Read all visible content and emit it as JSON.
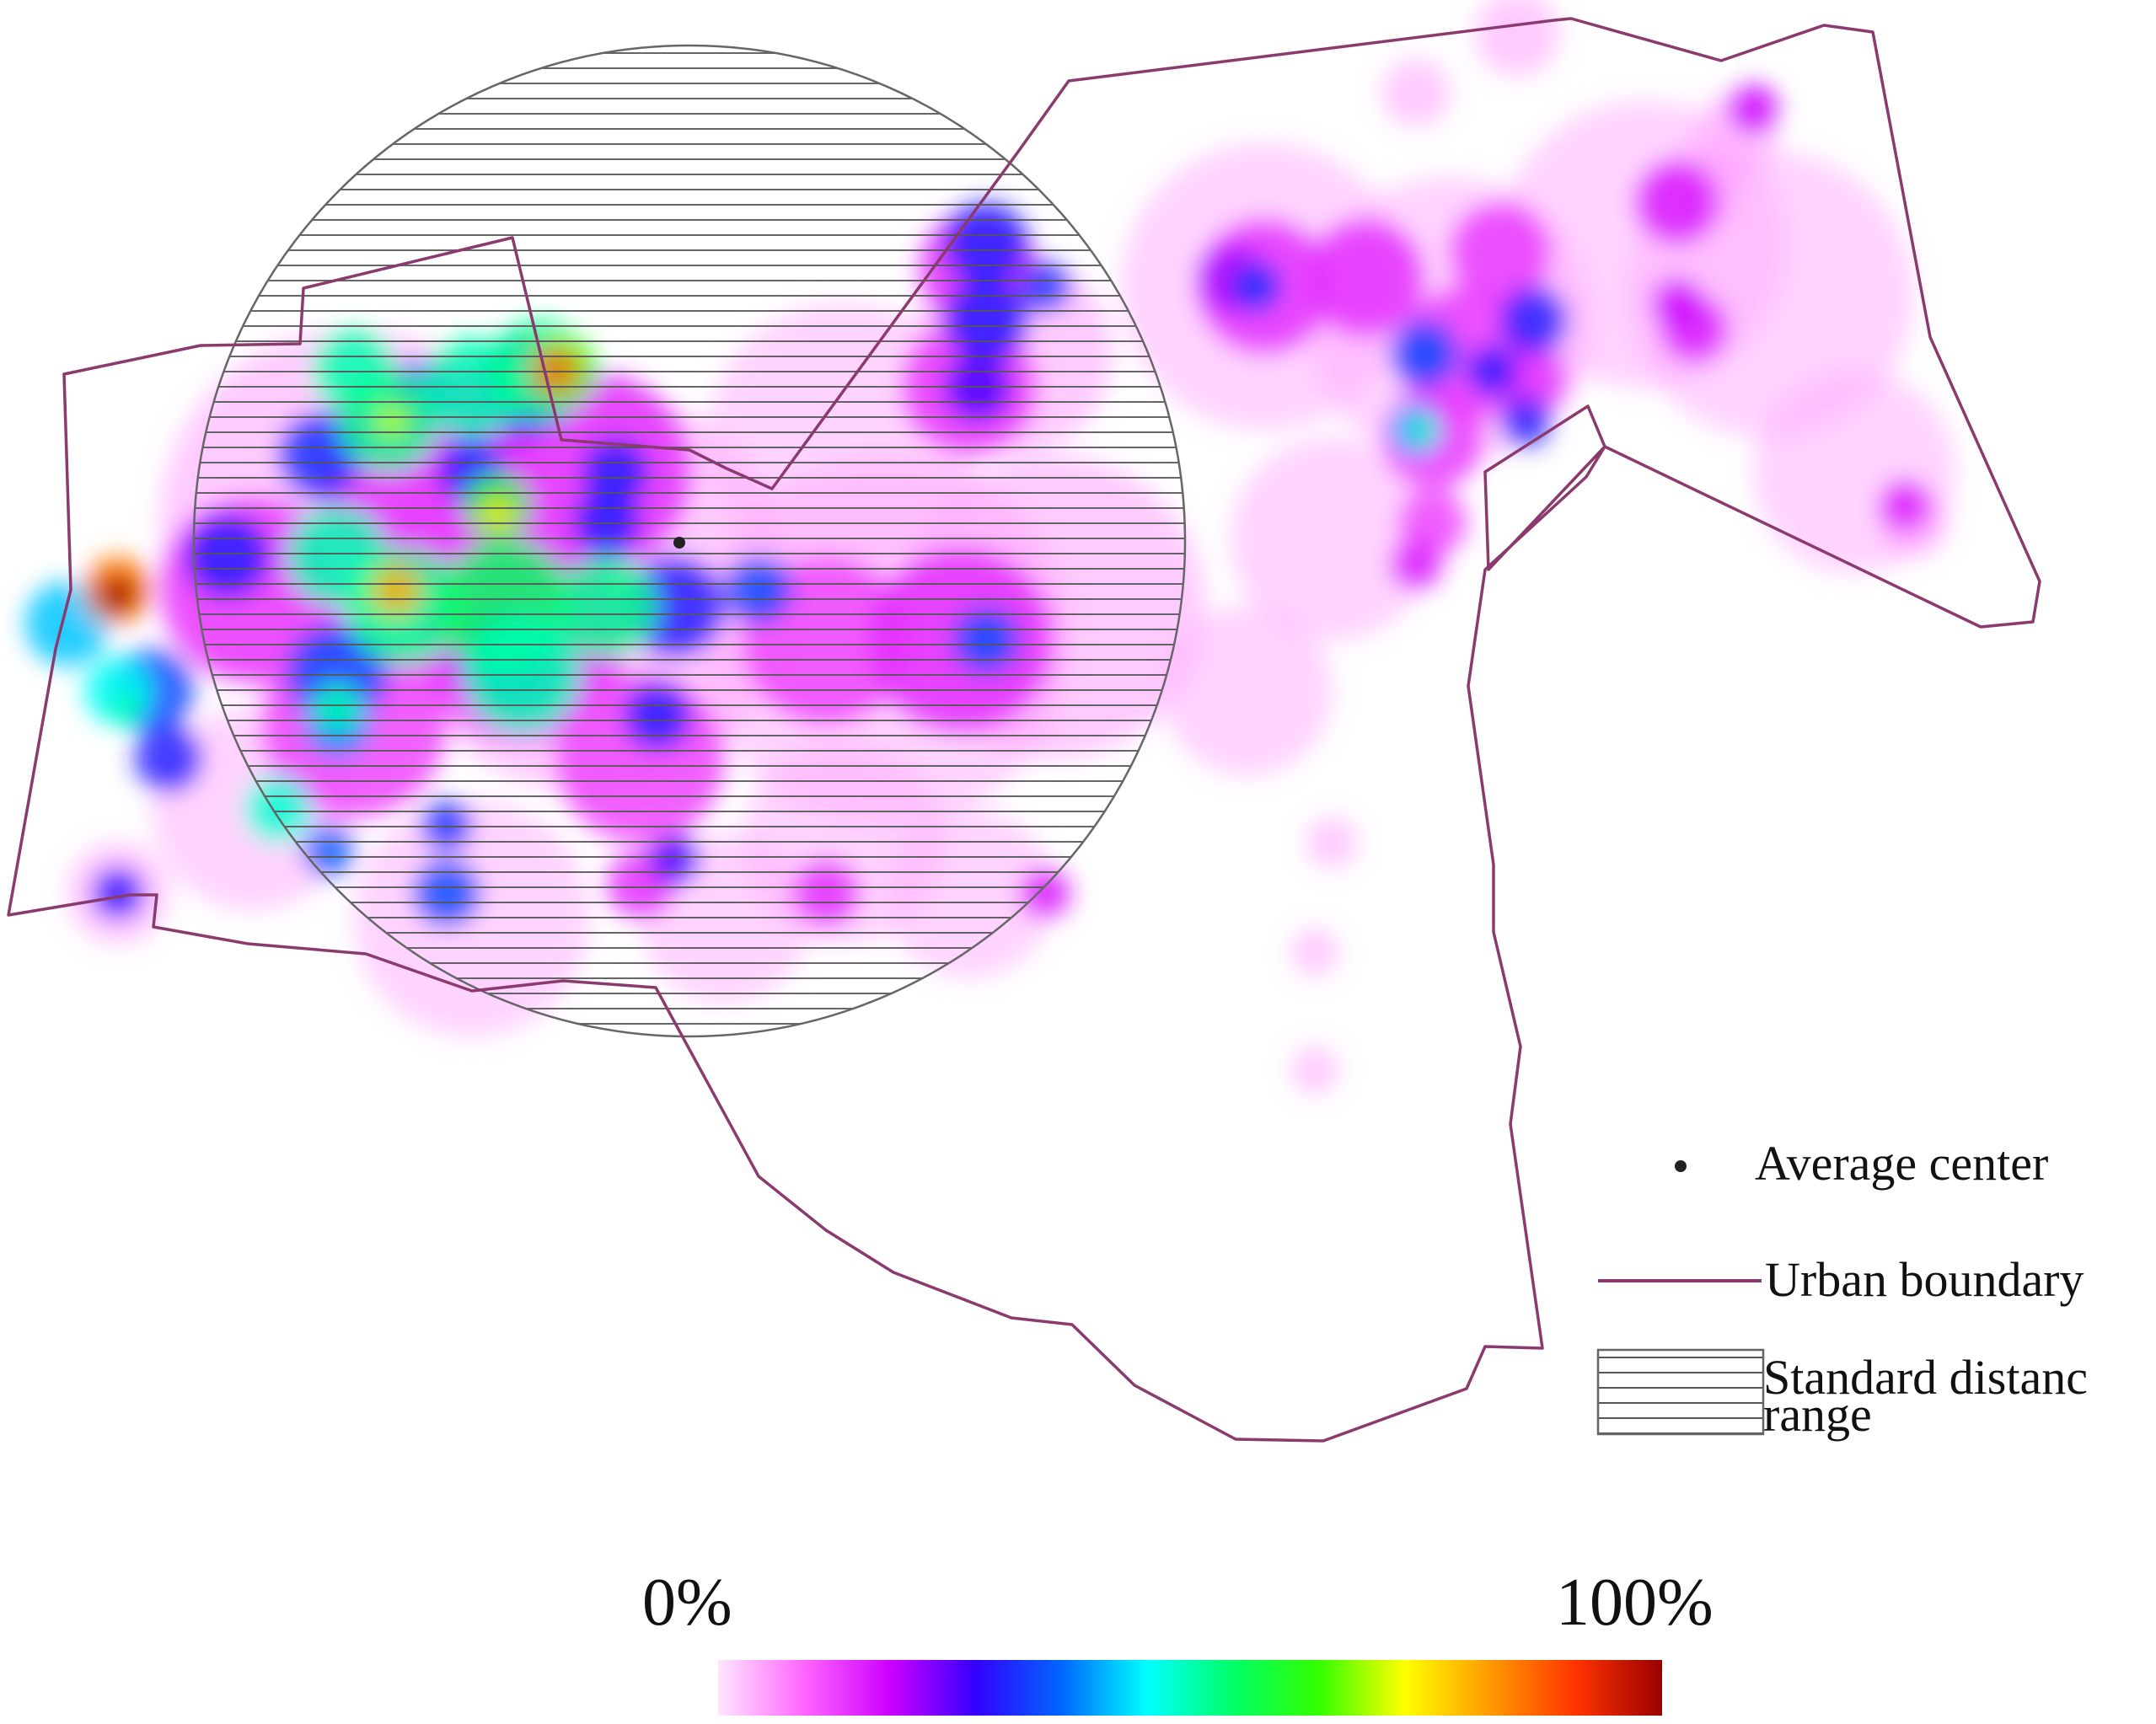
{
  "legend": {
    "average_center_label": "Average center",
    "urban_boundary_label": "Urban boundary",
    "standard_distance_label_line1": "Standard distanc",
    "standard_distance_label_line2": "range"
  },
  "color_scale": {
    "min_label": "0%",
    "max_label": "100%",
    "stops": [
      "#ffe6ff",
      "#ff66ff",
      "#cc00ff",
      "#3300ff",
      "#0066ff",
      "#00ffff",
      "#00ff66",
      "#33ff00",
      "#ffff00",
      "#ff9900",
      "#ff3300",
      "#990000"
    ]
  },
  "colors": {
    "boundary": "#8b3a6e",
    "hatch": "#555555",
    "base_density": "#ffd6ff"
  }
}
